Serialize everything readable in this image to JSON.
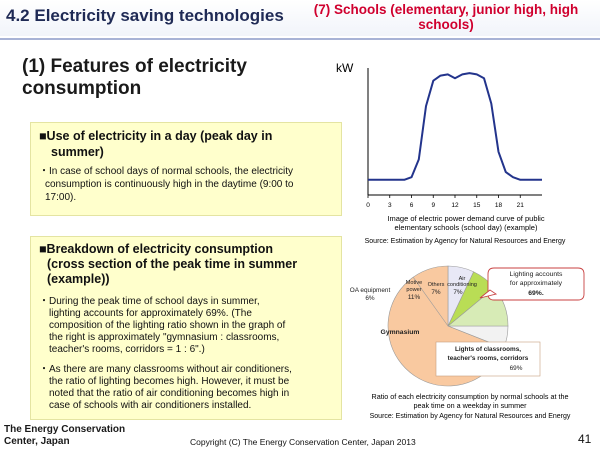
{
  "header": {
    "title": "4.2 Electricity saving technologies",
    "subtitle": "(7) Schools (elementary, junior high, high schools)"
  },
  "section_title": "(1) Features of electricity consumption",
  "box1": {
    "title_line1": "■Use of electricity in a day (peak day in",
    "title_line2": "summer)",
    "bullet_line1": "・In case of school days of normal schools, the electricity",
    "bullet_line2": "consumption is continuously high in the daytime (9:00 to",
    "bullet_line3": "17:00)."
  },
  "box2": {
    "title_line1": "■Breakdown of electricity consumption",
    "title_line2": "(cross section of the peak time in summer",
    "title_line3": "(example))",
    "b1_line1": "・During the peak time of school days in summer,",
    "b1_line2": "lighting accounts for approximately 69%. (The",
    "b1_line3": "composition of the lighting ratio shown in the graph of",
    "b1_line4": "the right is approximately \"gymnasium : classrooms,",
    "b1_line5": "teacher's rooms, corridors = 1 : 6\".)",
    "b2_line1": "・As there are many classrooms without air conditioners,",
    "b2_line2": "the ratio of lighting becomes high. However, it must be",
    "b2_line3": "noted that the ratio of air conditioning becomes high in",
    "b2_line4": "case of schools with air conditioners installed."
  },
  "chart_data": [
    {
      "type": "line",
      "ylabel": "kW",
      "x": [
        0,
        1,
        2,
        3,
        4,
        5,
        6,
        7,
        8,
        9,
        10,
        11,
        12,
        13,
        14,
        15,
        16,
        17,
        18,
        19,
        20,
        21,
        22,
        23,
        24
      ],
      "x_ticks": [
        "0",
        "3",
        "6",
        "9",
        "12",
        "15",
        "18",
        "21"
      ],
      "series": [
        {
          "values": [
            12,
            12,
            12,
            12,
            12,
            12,
            14,
            28,
            70,
            90,
            94,
            95,
            92,
            95,
            96,
            95,
            92,
            72,
            34,
            18,
            14,
            12,
            12,
            12,
            12
          ]
        }
      ],
      "ylim": [
        0,
        100
      ],
      "caption_line1": "Image of electric power demand curve of public",
      "caption_line2": "elementary schools (school day) (example)",
      "source": "Source: Estimation by Agency for Natural Resources and Energy"
    },
    {
      "type": "pie",
      "slices": [
        {
          "name": "Lighting",
          "value": 69
        },
        {
          "name": "OA equipment",
          "value": 6
        },
        {
          "name": "Motive power",
          "value": 11
        },
        {
          "name": "Others",
          "value": 7
        },
        {
          "name": "Air conditioning",
          "value": 7
        }
      ],
      "label_oa": "OA equipment",
      "label_oa_pct": "6%",
      "label_motive_1": "Motive",
      "label_motive_2": "power",
      "label_motive_pct": "11%",
      "label_others": "Others",
      "label_others_pct": "7%",
      "label_air_1": "Air",
      "label_air_2": "conditioning",
      "label_air_pct": "7%",
      "label_gym": "Gymnasium",
      "callout_light_1": "Lighting accounts",
      "callout_light_2": "for approximately",
      "callout_light_3": "69%.",
      "callout_class_1": "Lights of classrooms,",
      "callout_class_2": "teacher's rooms, corridors",
      "callout_class_3": "69%",
      "caption_line1": "Ratio of each electricity consumption by normal schools at the",
      "caption_line2": "peak time on a weekday in summer",
      "source": "Source: Estimation by Agency for Natural Resources and Energy",
      "colors": {
        "lighting": "#f9c9a0",
        "oa": "#f2f2f2",
        "motive": "#d7ebb6",
        "others": "#b9dd55",
        "air": "#e8e8f6"
      }
    }
  ],
  "footer": {
    "org_line1": "The Energy Conservation",
    "org_line2": "Center, Japan",
    "copyright": "Copyright (C) The Energy Conservation Center, Japan 2013",
    "page": "41"
  }
}
